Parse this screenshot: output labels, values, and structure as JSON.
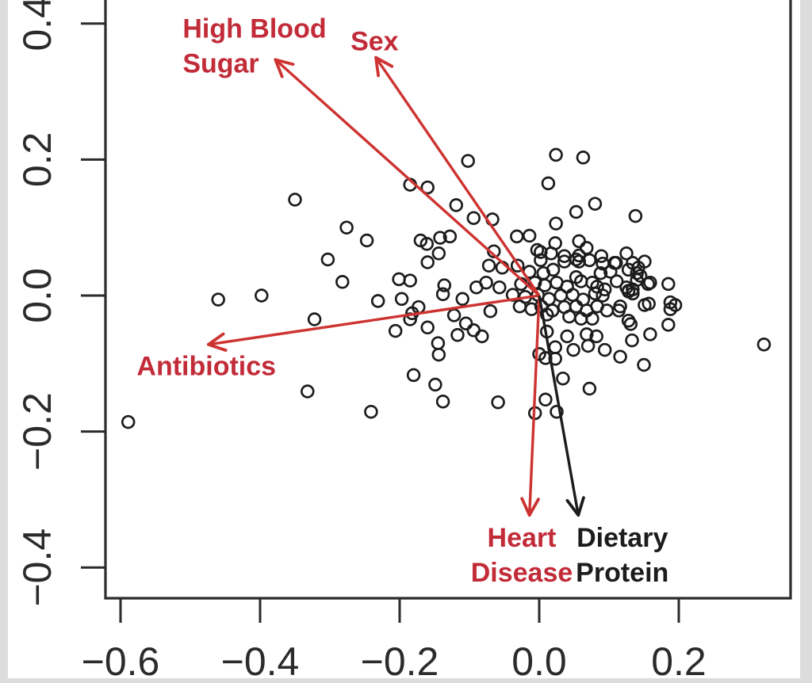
{
  "chart_data": {
    "type": "scatter",
    "title": "",
    "xlabel": "",
    "ylabel": "",
    "grid": false,
    "marker": "open-circle",
    "xlim": [
      -0.62,
      0.36
    ],
    "ylim": [
      -0.445,
      0.44
    ],
    "x_tick_values": [
      -0.6,
      -0.4,
      -0.2,
      0.0,
      0.2
    ],
    "x_tick_labels": [
      "−0.6",
      "−0.4",
      "−0.2",
      "0.0",
      "0.2"
    ],
    "y_tick_values": [
      0.4,
      0.2,
      0.0,
      -0.2,
      -0.4
    ],
    "y_tick_labels": [
      "0.4",
      "0.2",
      "0.0",
      "−0.2",
      "−0.4"
    ],
    "colors": {
      "arrow_red": "#cd3331",
      "label_red": "#c22b38",
      "black": "#1c1c1c",
      "axis": "#2b2b2b",
      "point": "#1c1c1c"
    },
    "vectors": [
      {
        "name": "high-blood-sugar",
        "label_lines": [
          "High Blood",
          "Sugar"
        ],
        "tip": [
          -0.378,
          0.347
        ],
        "label_anchor": [
          -0.511,
          0.368
        ],
        "align": "left",
        "color": "red"
      },
      {
        "name": "sex",
        "label_lines": [
          "Sex"
        ],
        "tip": [
          -0.234,
          0.35
        ],
        "label_anchor": [
          -0.236,
          0.375
        ],
        "align": "center",
        "color": "red"
      },
      {
        "name": "antibiotics",
        "label_lines": [
          "Antibiotics"
        ],
        "tip": [
          -0.474,
          -0.072
        ],
        "label_anchor": [
          -0.477,
          -0.103
        ],
        "align": "center",
        "color": "red"
      },
      {
        "name": "heart-disease",
        "label_lines": [
          "Heart",
          "Disease"
        ],
        "tip": [
          -0.014,
          -0.323
        ],
        "label_anchor": [
          -0.025,
          -0.381
        ],
        "align": "center",
        "color": "red"
      },
      {
        "name": "dietary-protein",
        "label_lines": [
          "Dietary",
          "Protein"
        ],
        "tip": [
          0.056,
          -0.323
        ],
        "label_anchor": [
          0.119,
          -0.381
        ],
        "align": "center",
        "color": "black"
      }
    ],
    "points": [
      [
        -0.589,
        -0.186
      ],
      [
        -0.46,
        -0.006
      ],
      [
        -0.398,
        0.0
      ],
      [
        -0.35,
        0.141
      ],
      [
        -0.332,
        -0.141
      ],
      [
        -0.322,
        -0.035
      ],
      [
        -0.303,
        0.053
      ],
      [
        -0.282,
        0.02
      ],
      [
        -0.276,
        0.1
      ],
      [
        -0.247,
        0.081
      ],
      [
        -0.241,
        -0.171
      ],
      [
        -0.231,
        -0.008
      ],
      [
        -0.206,
        -0.052
      ],
      [
        -0.201,
        0.024
      ],
      [
        -0.197,
        -0.005
      ],
      [
        -0.185,
        0.163
      ],
      [
        -0.185,
        0.022
      ],
      [
        -0.182,
        -0.026
      ],
      [
        -0.185,
        -0.035
      ],
      [
        -0.18,
        -0.117
      ],
      [
        -0.173,
        -0.017
      ],
      [
        -0.17,
        0.081
      ],
      [
        -0.161,
        0.076
      ],
      [
        -0.16,
        0.159
      ],
      [
        -0.16,
        0.049
      ],
      [
        -0.16,
        -0.047
      ],
      [
        -0.149,
        -0.131
      ],
      [
        -0.145,
        -0.07
      ],
      [
        -0.144,
        -0.087
      ],
      [
        -0.144,
        0.062
      ],
      [
        -0.142,
        0.085
      ],
      [
        -0.138,
        -0.156
      ],
      [
        -0.138,
        0.002
      ],
      [
        -0.136,
        0.015
      ],
      [
        -0.128,
        0.087
      ],
      [
        -0.122,
        -0.029
      ],
      [
        -0.119,
        0.133
      ],
      [
        -0.117,
        -0.058
      ],
      [
        -0.11,
        -0.005
      ],
      [
        -0.105,
        -0.041
      ],
      [
        -0.102,
        0.198
      ],
      [
        -0.094,
        0.114
      ],
      [
        -0.094,
        -0.051
      ],
      [
        -0.09,
        0.012
      ],
      [
        -0.082,
        -0.06
      ],
      [
        -0.076,
        0.019
      ],
      [
        -0.072,
        0.044
      ],
      [
        -0.07,
        -0.023
      ],
      [
        -0.067,
        0.112
      ],
      [
        -0.065,
        0.065
      ],
      [
        -0.059,
        -0.157
      ],
      [
        -0.057,
        0.012
      ],
      [
        -0.053,
        0.041
      ],
      [
        -0.038,
        0.001
      ],
      [
        -0.032,
        0.087
      ],
      [
        -0.031,
        0.044
      ],
      [
        -0.014,
        0.088
      ],
      [
        -0.006,
        -0.173
      ],
      [
        -0.003,
        0.067
      ],
      [
        0.009,
        -0.153
      ],
      [
        0.013,
        0.165
      ],
      [
        0.024,
        0.207
      ],
      [
        0.024,
        0.106
      ],
      [
        0.025,
        -0.171
      ],
      [
        0.034,
        -0.122
      ],
      [
        0.053,
        0.123
      ],
      [
        0.063,
        0.203
      ],
      [
        0.072,
        -0.137
      ],
      [
        0.08,
        0.135
      ],
      [
        0.138,
        0.117
      ],
      [
        0.322,
        -0.072
      ],
      [
        0.023,
        0.077
      ],
      [
        0.057,
        0.08
      ],
      [
        0.068,
        0.07
      ],
      [
        0.002,
        0.064
      ],
      [
        0.017,
        0.062
      ],
      [
        0.036,
        0.058
      ],
      [
        0.057,
        0.059
      ],
      [
        0.089,
        0.058
      ],
      [
        0.125,
        0.062
      ],
      [
        0.11,
        0.048
      ],
      [
        0.057,
        0.05
      ],
      [
        0.14,
        0.033
      ],
      [
        0.14,
        0.023
      ],
      [
        0.156,
        0.017
      ],
      [
        0.185,
        0.017
      ],
      [
        0.128,
        0.007
      ],
      [
        0.134,
        0.003
      ],
      [
        0.157,
        -0.012
      ],
      [
        0.188,
        -0.01
      ],
      [
        0.188,
        -0.02
      ],
      [
        0.002,
        0.052
      ],
      [
        0.036,
        0.05
      ],
      [
        0.053,
        0.053
      ],
      [
        0.072,
        0.052
      ],
      [
        0.091,
        0.047
      ],
      [
        0.108,
        0.048
      ],
      [
        0.134,
        0.048
      ],
      [
        0.151,
        0.05
      ],
      [
        -0.014,
        0.035
      ],
      [
        0.006,
        0.033
      ],
      [
        0.02,
        0.038
      ],
      [
        0.053,
        0.027
      ],
      [
        0.088,
        0.033
      ],
      [
        0.102,
        0.035
      ],
      [
        0.128,
        0.038
      ],
      [
        0.142,
        0.041
      ],
      [
        0.145,
        0.029
      ],
      [
        0.159,
        0.019
      ],
      [
        -0.026,
        0.017
      ],
      [
        -0.006,
        0.019
      ],
      [
        0.008,
        0.015
      ],
      [
        0.025,
        0.019
      ],
      [
        0.04,
        0.013
      ],
      [
        0.06,
        0.021
      ],
      [
        0.076,
        0.019
      ],
      [
        0.083,
        0.013
      ],
      [
        0.094,
        0.009
      ],
      [
        0.111,
        0.021
      ],
      [
        0.125,
        0.012
      ],
      [
        0.134,
        0.009
      ],
      [
        -0.02,
        -0.002
      ],
      [
        -0.002,
        0.001
      ],
      [
        0.014,
        -0.005
      ],
      [
        0.031,
        0.0
      ],
      [
        0.048,
        0.001
      ],
      [
        0.063,
        -0.006
      ],
      [
        0.08,
        0.003
      ],
      [
        0.091,
        0.0
      ],
      [
        0.116,
        -0.016
      ],
      [
        0.128,
        0.006
      ],
      [
        0.151,
        -0.014
      ],
      [
        -0.028,
        -0.016
      ],
      [
        -0.011,
        -0.02
      ],
      [
        0.003,
        -0.016
      ],
      [
        0.019,
        -0.022
      ],
      [
        0.036,
        -0.017
      ],
      [
        0.053,
        -0.016
      ],
      [
        0.068,
        -0.022
      ],
      [
        0.083,
        -0.016
      ],
      [
        0.097,
        -0.022
      ],
      [
        0.128,
        -0.037
      ],
      [
        0.011,
        -0.028
      ],
      [
        0.043,
        -0.031
      ],
      [
        0.06,
        -0.034
      ],
      [
        0.076,
        -0.034
      ],
      [
        0.114,
        -0.022
      ],
      [
        0.131,
        -0.042
      ],
      [
        0.185,
        -0.043
      ],
      [
        0.159,
        -0.057
      ],
      [
        0.133,
        -0.066
      ],
      [
        0.011,
        -0.053
      ],
      [
        0.04,
        -0.06
      ],
      [
        0.068,
        -0.057
      ],
      [
        0.082,
        -0.06
      ],
      [
        0.023,
        -0.076
      ],
      [
        0.049,
        -0.08
      ],
      [
        0.07,
        -0.074
      ],
      [
        0.094,
        -0.08
      ],
      [
        0.116,
        -0.09
      ],
      [
        0.0,
        -0.086
      ],
      [
        0.009,
        -0.092
      ],
      [
        0.023,
        -0.093
      ],
      [
        0.15,
        -0.102
      ],
      [
        0.195,
        -0.014
      ]
    ]
  }
}
